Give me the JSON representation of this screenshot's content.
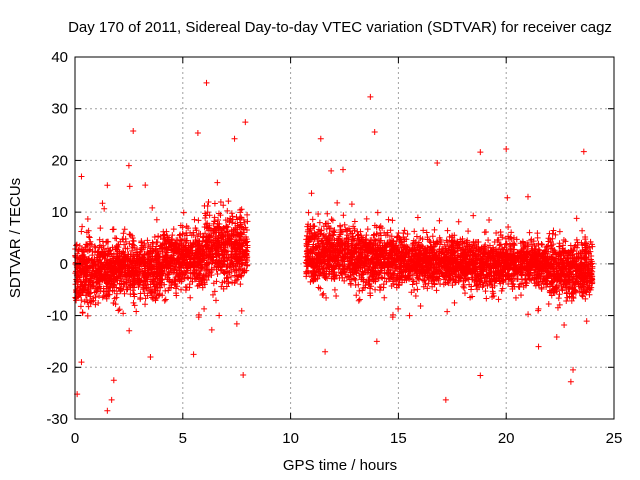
{
  "chart_data": {
    "type": "scatter",
    "title": "Day 170 of 2011, Sidereal Day-to-day VTEC variation (SDTVAR) for receiver cagz",
    "xlabel": "GPS time / hours",
    "ylabel": "SDTVAR / TECUs",
    "xlim": [
      0,
      25
    ],
    "ylim": [
      -30,
      40
    ],
    "xticks": [
      0,
      5,
      10,
      15,
      20,
      25
    ],
    "yticks": [
      -30,
      -20,
      -10,
      0,
      10,
      20,
      30,
      40
    ],
    "grid": true,
    "marker": "+",
    "color": "#ff0000",
    "data_gap_hours": [
      8.0,
      10.7
    ],
    "dense_cloud": [
      {
        "x_start": 0.0,
        "x_end": 1.0,
        "center": -2,
        "spread": 6
      },
      {
        "x_start": 1.0,
        "x_end": 4.0,
        "center": -1,
        "spread": 5
      },
      {
        "x_start": 4.0,
        "x_end": 6.0,
        "center": 1,
        "spread": 5
      },
      {
        "x_start": 6.0,
        "x_end": 8.0,
        "center": 3,
        "spread": 6
      },
      {
        "x_start": 10.7,
        "x_end": 13.0,
        "center": 2,
        "spread": 5
      },
      {
        "x_start": 13.0,
        "x_end": 15.0,
        "center": 1,
        "spread": 5
      },
      {
        "x_start": 15.0,
        "x_end": 18.0,
        "center": 0.5,
        "spread": 4
      },
      {
        "x_start": 18.0,
        "x_end": 22.0,
        "center": 0,
        "spread": 4
      },
      {
        "x_start": 22.0,
        "x_end": 24.0,
        "center": -1,
        "spread": 5
      }
    ],
    "outliers": [
      {
        "x": 6.1,
        "y": 35.0
      },
      {
        "x": 13.7,
        "y": 32.3
      },
      {
        "x": 2.7,
        "y": 25.7
      },
      {
        "x": 5.7,
        "y": 25.3
      },
      {
        "x": 7.9,
        "y": 27.4
      },
      {
        "x": 13.9,
        "y": 25.5
      },
      {
        "x": 7.4,
        "y": 24.2
      },
      {
        "x": 11.4,
        "y": 24.2
      },
      {
        "x": 20.0,
        "y": 22.2
      },
      {
        "x": 18.8,
        "y": 21.6
      },
      {
        "x": 23.6,
        "y": 21.7
      },
      {
        "x": 0.3,
        "y": 16.9
      },
      {
        "x": 1.5,
        "y": 15.2
      },
      {
        "x": 2.5,
        "y": 19.0
      },
      {
        "x": 16.8,
        "y": 19.5
      },
      {
        "x": 0.1,
        "y": -25.2
      },
      {
        "x": 1.5,
        "y": -28.4
      },
      {
        "x": 1.7,
        "y": -26.3
      },
      {
        "x": 1.8,
        "y": -22.5
      },
      {
        "x": 17.2,
        "y": -26.3
      },
      {
        "x": 23.0,
        "y": -22.8
      },
      {
        "x": 23.1,
        "y": -20.5
      },
      {
        "x": 7.8,
        "y": -21.5
      },
      {
        "x": 18.8,
        "y": -21.6
      },
      {
        "x": 0.3,
        "y": -19.0
      },
      {
        "x": 3.5,
        "y": -18.0
      },
      {
        "x": 5.5,
        "y": -17.5
      },
      {
        "x": 11.6,
        "y": -17.0
      },
      {
        "x": 14.0,
        "y": -15.0
      },
      {
        "x": 21.5,
        "y": -16.0
      }
    ]
  }
}
